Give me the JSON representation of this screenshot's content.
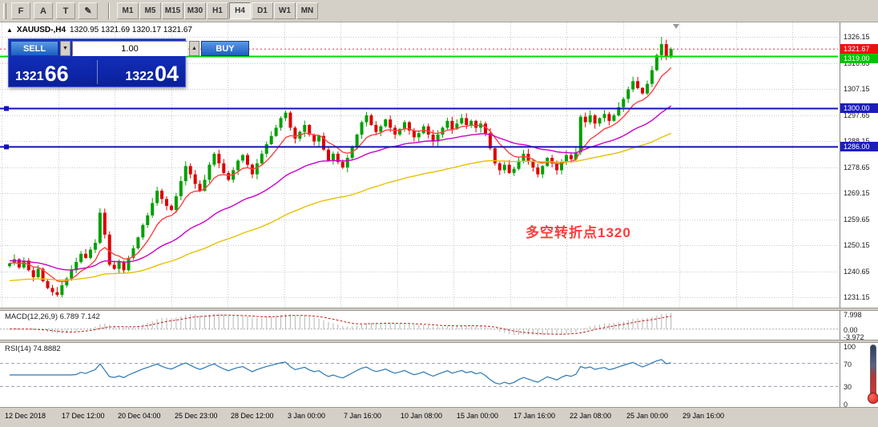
{
  "toolbar": {
    "tools": [
      {
        "name": "fibonacci-retracement",
        "glyph": "F"
      },
      {
        "name": "text",
        "glyph": "A"
      },
      {
        "name": "text-label",
        "glyph": "T"
      },
      {
        "name": "draw-arrows",
        "glyph": "✎"
      }
    ],
    "timeframes": [
      "M1",
      "M5",
      "M15",
      "M30",
      "H1",
      "H4",
      "D1",
      "W1",
      "MN"
    ],
    "selected_timeframe": "H4"
  },
  "chart": {
    "marker_glyph": "▲",
    "symbol": "XAUUSD-,H4",
    "ohlc": "1320.95 1321.69 1320.17 1321.67",
    "annotation": {
      "text": "多空转折点1320",
      "color": "#ff3b3b"
    },
    "trade_panel": {
      "sell_label": "SELL",
      "buy_label": "BUY",
      "volume": "1.00",
      "spin_down_glyph": "▼",
      "spin_up_glyph": "▲",
      "sell_price_main": "1321",
      "sell_price_big": "66",
      "buy_price_main": "1322",
      "buy_price_big": "04"
    },
    "price_scale": {
      "ticks": [
        "1326.15",
        "1316.65",
        "1307.15",
        "1297.65",
        "1288.15",
        "1278.65",
        "1269.15",
        "1259.65",
        "1250.15",
        "1240.65",
        "1231.15"
      ],
      "badges": [
        {
          "label": "1321.67",
          "price": 1321.67,
          "color": "#ee1111",
          "dy": 0
        },
        {
          "label": "1319.00",
          "price": 1319.0,
          "color": "#00c400",
          "dy": 3
        },
        {
          "label": "1300.00",
          "price": 1300.0,
          "color": "#1d1dbe",
          "dy": 0
        },
        {
          "label": "1286.00",
          "price": 1286.0,
          "color": "#1d1dbe",
          "dy": 0
        }
      ]
    },
    "hlines": [
      {
        "price": 1321.67,
        "color": "#ff2a2a",
        "width": 1,
        "dash": "2,3",
        "handle": false
      },
      {
        "price": 1319.0,
        "color": "#00dd00",
        "width": 2,
        "dash": "",
        "handle": false
      },
      {
        "price": 1300.0,
        "color": "#1212b8",
        "width": 2,
        "dash": "",
        "handle": true
      },
      {
        "price": 1286.0,
        "color": "#1212b8",
        "width": 2,
        "dash": "",
        "handle": true
      }
    ]
  },
  "macd": {
    "label": "MACD(12,26,9) 6.789 7.142",
    "vmax": 8.8,
    "vmin": -4.8,
    "ticks": [
      {
        "label": "7.998",
        "value": 7.998
      },
      {
        "label": "0.00",
        "value": 0
      },
      {
        "label": "-3.972",
        "value": -3.972
      }
    ]
  },
  "rsi": {
    "label": "RSI(14) 74.8882",
    "levels": [
      70,
      30
    ],
    "ticks": [
      {
        "label": "100",
        "value": 100
      },
      {
        "label": "70",
        "value": 70
      },
      {
        "label": "30",
        "value": 30
      },
      {
        "label": "0",
        "value": 0
      }
    ]
  },
  "time_axis": {
    "labels": [
      "12 Dec 2018",
      "17 Dec 12:00",
      "20 Dec 04:00",
      "25 Dec 23:00",
      "28 Dec 12:00",
      "3 Jan 00:00",
      "7 Jan 16:00",
      "10 Jan 08:00",
      "15 Jan 00:00",
      "17 Jan 16:00",
      "22 Jan 08:00",
      "25 Jan 00:00",
      "29 Jan 16:00"
    ]
  },
  "chart_data": {
    "type": "candlestick",
    "title": "XAUUSD-,H4",
    "symbol": "XAUUSD",
    "timeframe": "H4",
    "ylim": [
      1231.15,
      1326.15
    ],
    "last_price": 1321.67,
    "first_open": 1242.5,
    "closes": [
      1243.5,
      1245.0,
      1242.0,
      1244.5,
      1241.0,
      1238.5,
      1241.5,
      1237.0,
      1234.5,
      1233.0,
      1232.0,
      1235.5,
      1238.0,
      1241.0,
      1244.0,
      1247.0,
      1245.5,
      1248.5,
      1251.0,
      1262.0,
      1254.0,
      1243.0,
      1241.5,
      1244.0,
      1241.0,
      1245.5,
      1249.0,
      1253.0,
      1257.5,
      1261.0,
      1265.5,
      1270.0,
      1267.0,
      1264.5,
      1263.0,
      1268.0,
      1273.5,
      1279.0,
      1276.0,
      1272.5,
      1270.0,
      1274.0,
      1279.5,
      1283.5,
      1280.0,
      1276.5,
      1274.0,
      1277.5,
      1281.0,
      1283.0,
      1279.5,
      1276.0,
      1280.0,
      1283.5,
      1287.0,
      1290.0,
      1293.0,
      1296.5,
      1298.5,
      1293.0,
      1289.0,
      1291.5,
      1294.0,
      1290.5,
      1288.0,
      1290.0,
      1285.0,
      1281.0,
      1283.5,
      1280.5,
      1278.5,
      1282.0,
      1286.0,
      1290.5,
      1295.0,
      1297.5,
      1294.0,
      1291.5,
      1293.5,
      1296.0,
      1293.0,
      1290.5,
      1292.5,
      1295.0,
      1292.0,
      1289.5,
      1291.0,
      1293.5,
      1290.5,
      1288.0,
      1290.5,
      1293.0,
      1295.5,
      1292.5,
      1294.5,
      1296.5,
      1294.0,
      1295.5,
      1293.0,
      1294.5,
      1291.0,
      1285.5,
      1280.0,
      1277.5,
      1279.5,
      1276.5,
      1278.0,
      1281.0,
      1283.5,
      1281.0,
      1278.5,
      1276.0,
      1279.0,
      1282.0,
      1280.0,
      1277.5,
      1280.5,
      1283.0,
      1281.5,
      1284.0,
      1297.0,
      1295.0,
      1297.5,
      1294.5,
      1296.5,
      1298.0,
      1295.5,
      1297.5,
      1300.5,
      1303.5,
      1307.0,
      1310.0,
      1307.5,
      1305.5,
      1309.0,
      1314.0,
      1319.5,
      1323.5,
      1319.0,
      1321.67
    ],
    "overrides": {
      "10": {
        "low": 1231.3
      },
      "19": {
        "high": 1263.6
      },
      "58": {
        "high": 1299.3
      },
      "133": {
        "low": 1305.0
      },
      "137": {
        "high": 1326.15
      }
    },
    "colors": {
      "up": "#00a000",
      "down": "#dd0000"
    },
    "moving_averages": [
      {
        "name": "fast",
        "period": 9,
        "seed_offset": 0,
        "color": "#ff4040"
      },
      {
        "name": "medium",
        "period": 34,
        "seed_offset": 1,
        "color": "#cc00cc"
      },
      {
        "name": "slow",
        "period": 80,
        "seed_offset": -6.5,
        "color": "#e8c000"
      }
    ],
    "indicators": {
      "macd": {
        "fast": 12,
        "slow": 26,
        "signal": 9,
        "current": [
          6.789,
          7.142
        ]
      },
      "rsi": {
        "period": 14,
        "current": 74.8882
      }
    }
  }
}
